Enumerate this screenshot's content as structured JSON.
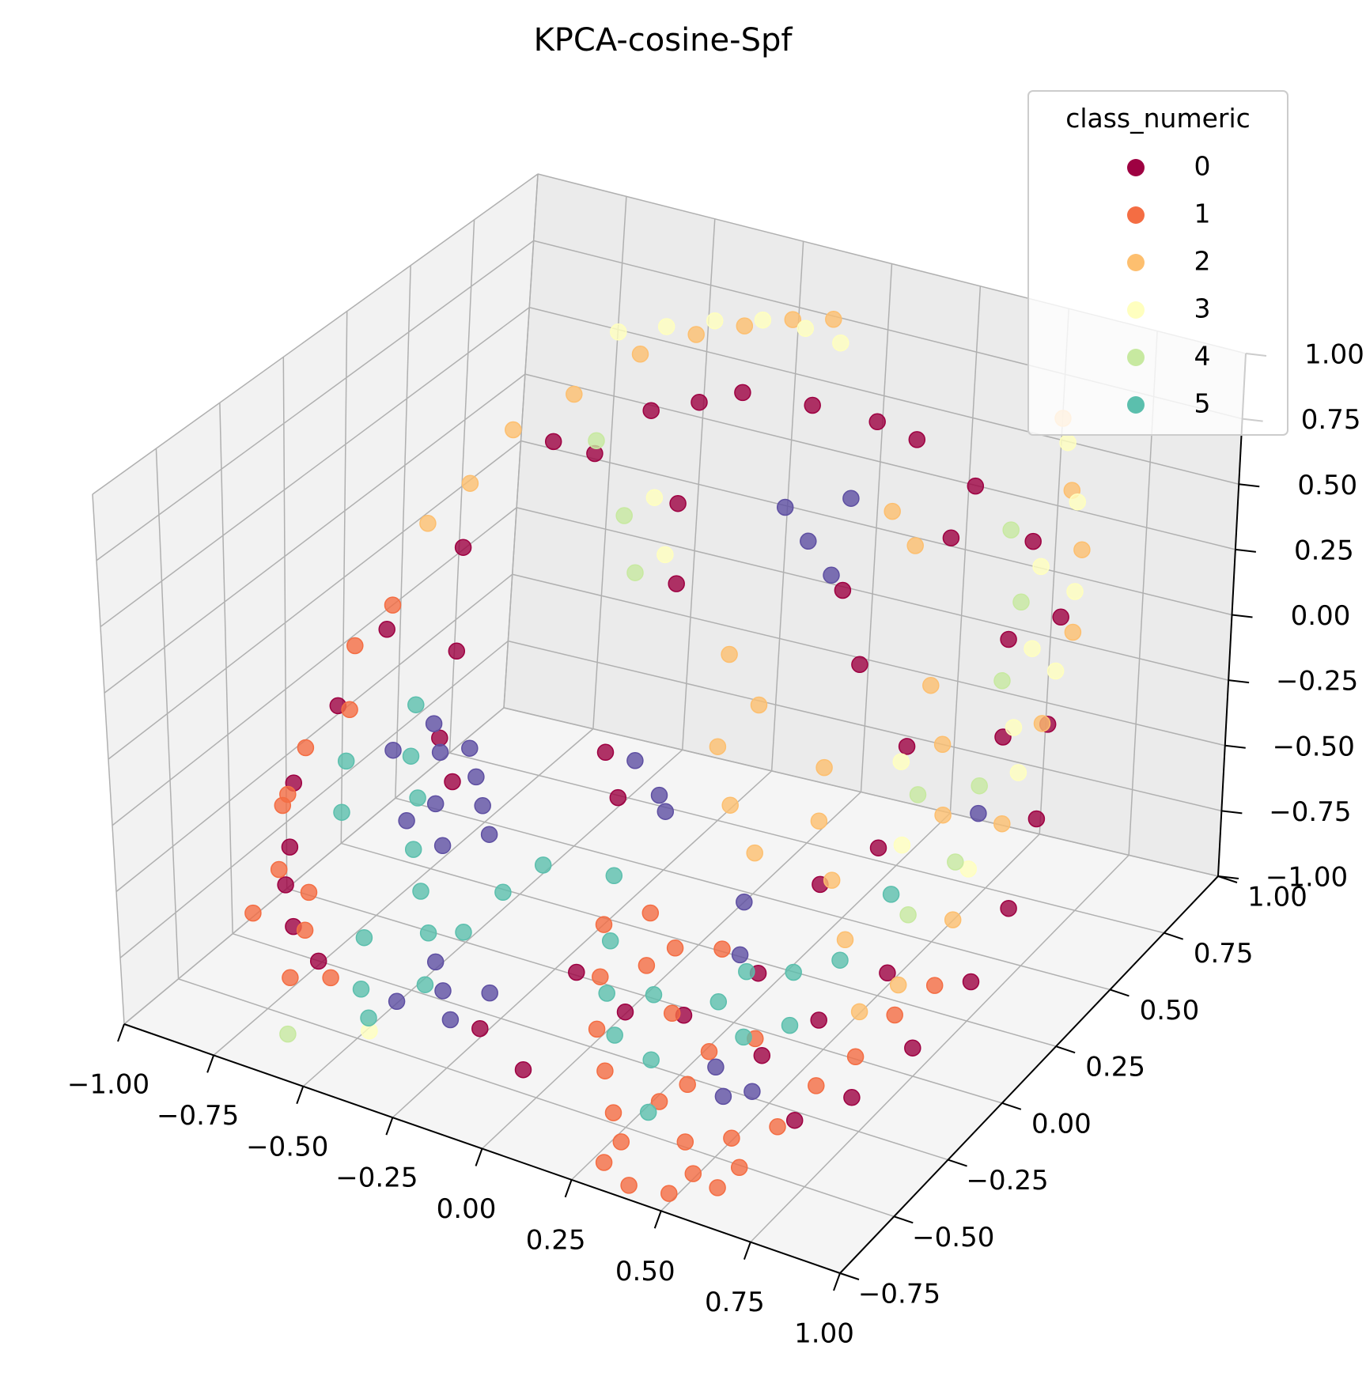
{
  "chart_data": {
    "type": "scatter",
    "projection": "3d",
    "title": "KPCA-cosine-Spf",
    "xlabel": "",
    "ylabel": "",
    "zlabel": "",
    "xlim": [
      -1.0,
      1.0
    ],
    "ylim": [
      -0.75,
      1.0
    ],
    "zlim": [
      -1.0,
      1.0
    ],
    "x_ticks": [
      "−1.00",
      "−0.75",
      "−0.50",
      "−0.25",
      "0.00",
      "0.25",
      "0.50",
      "0.75",
      "1.00"
    ],
    "x_tick_values": [
      -1.0,
      -0.75,
      -0.5,
      -0.25,
      0.0,
      0.25,
      0.5,
      0.75,
      1.0
    ],
    "y_ticks": [
      "−0.75",
      "−0.50",
      "−0.25",
      "0.00",
      "0.25",
      "0.50",
      "0.75",
      "1.00"
    ],
    "y_tick_values": [
      -0.75,
      -0.5,
      -0.25,
      0.0,
      0.25,
      0.5,
      0.75,
      1.0
    ],
    "z_ticks": [
      "−1.00",
      "−0.75",
      "−0.50",
      "−0.25",
      "0.00",
      "0.25",
      "0.50",
      "0.75",
      "1.00"
    ],
    "z_tick_values": [
      -1.0,
      -0.75,
      -0.5,
      -0.25,
      0.0,
      0.25,
      0.5,
      0.75,
      1.0
    ],
    "grid": true,
    "legend": {
      "title": "class_numeric",
      "placement": "top-right",
      "entries": [
        {
          "label": "0",
          "color": "#9e0142"
        },
        {
          "label": "1",
          "color": "#f46d43"
        },
        {
          "label": "2",
          "color": "#fdbf6f"
        },
        {
          "label": "3",
          "color": "#ffffbf"
        },
        {
          "label": "4",
          "color": "#c7e9a0"
        },
        {
          "label": "5",
          "color": "#5bbfad"
        }
      ]
    },
    "series": [
      {
        "name": "0",
        "color": "#9e0142",
        "points": [
          [
            -0.62,
            0.55,
            0.45
          ],
          [
            -0.55,
            0.62,
            0.38
          ],
          [
            -0.45,
            0.7,
            0.52
          ],
          [
            -0.35,
            0.75,
            0.55
          ],
          [
            -0.25,
            0.78,
            0.6
          ],
          [
            -0.7,
            0.3,
            0.2
          ],
          [
            -0.78,
            0.1,
            0.0
          ],
          [
            -0.82,
            -0.05,
            -0.2
          ],
          [
            -0.85,
            -0.2,
            -0.4
          ],
          [
            -0.8,
            -0.3,
            -0.55
          ],
          [
            -0.75,
            -0.4,
            -0.6
          ],
          [
            -0.7,
            -0.45,
            -0.7
          ],
          [
            -0.6,
            -0.5,
            -0.75
          ],
          [
            -0.1,
            0.85,
            0.55
          ],
          [
            0.05,
            0.9,
            0.5
          ],
          [
            0.15,
            0.92,
            0.45
          ],
          [
            0.3,
            0.95,
            0.3
          ],
          [
            0.5,
            0.9,
            0.2
          ],
          [
            0.65,
            0.8,
            0.05
          ],
          [
            0.75,
            0.6,
            -0.15
          ],
          [
            0.85,
            0.4,
            -0.3
          ],
          [
            0.9,
            0.2,
            -0.45
          ],
          [
            0.92,
            0.0,
            -0.55
          ],
          [
            0.88,
            -0.2,
            -0.65
          ],
          [
            0.8,
            -0.35,
            -0.75
          ],
          [
            0.7,
            -0.45,
            -0.8
          ],
          [
            0.3,
            -0.3,
            -0.7
          ],
          [
            0.2,
            -0.4,
            -0.65
          ],
          [
            0.1,
            -0.45,
            -0.5
          ],
          [
            0.0,
            -0.1,
            -0.15
          ],
          [
            -0.1,
            0.0,
            -0.1
          ],
          [
            0.45,
            -0.2,
            -0.55
          ],
          [
            -0.3,
            0.6,
            0.3
          ],
          [
            -0.2,
            0.45,
            0.15
          ],
          [
            0.2,
            0.55,
            0.2
          ],
          [
            0.35,
            0.4,
            0.1
          ],
          [
            0.55,
            0.3,
            -0.05
          ],
          [
            0.6,
            0.1,
            -0.25
          ],
          [
            0.5,
            0.0,
            -0.35
          ],
          [
            -0.65,
            0.2,
            -0.1
          ],
          [
            -0.6,
            0.05,
            -0.3
          ],
          [
            -0.5,
            -0.05,
            -0.35
          ],
          [
            0.75,
            -0.1,
            -0.5
          ],
          [
            0.65,
            -0.25,
            -0.6
          ],
          [
            0.55,
            -0.35,
            -0.7
          ],
          [
            -0.15,
            -0.5,
            -0.8
          ],
          [
            0.0,
            -0.55,
            -0.85
          ],
          [
            0.82,
            0.3,
            0.1
          ],
          [
            0.7,
            0.5,
            0.25
          ],
          [
            0.4,
            0.7,
            0.35
          ]
        ]
      },
      {
        "name": "1",
        "color": "#f46d43",
        "points": [
          [
            -0.88,
            -0.1,
            -0.35
          ],
          [
            -0.85,
            -0.25,
            -0.45
          ],
          [
            -0.8,
            -0.35,
            -0.6
          ],
          [
            -0.75,
            -0.3,
            -0.7
          ],
          [
            -0.7,
            -0.4,
            -0.75
          ],
          [
            -0.82,
            0.0,
            -0.25
          ],
          [
            -0.9,
            -0.15,
            -0.5
          ],
          [
            -0.78,
            -0.5,
            -0.65
          ],
          [
            -0.65,
            -0.55,
            -0.8
          ],
          [
            -0.6,
            -0.45,
            -0.85
          ],
          [
            -0.87,
            0.1,
            -0.1
          ],
          [
            -0.83,
            0.2,
            0.0
          ],
          [
            0.1,
            -0.35,
            -0.6
          ],
          [
            0.15,
            -0.45,
            -0.7
          ],
          [
            0.2,
            -0.5,
            -0.8
          ],
          [
            0.25,
            -0.55,
            -0.9
          ],
          [
            0.3,
            -0.6,
            -0.95
          ],
          [
            0.35,
            -0.5,
            -0.85
          ],
          [
            0.4,
            -0.45,
            -0.8
          ],
          [
            0.45,
            -0.55,
            -0.92
          ],
          [
            0.5,
            -0.6,
            -0.98
          ],
          [
            0.55,
            -0.5,
            -0.9
          ],
          [
            0.6,
            -0.55,
            -0.95
          ],
          [
            0.65,
            -0.45,
            -0.85
          ],
          [
            0.2,
            -0.3,
            -0.55
          ],
          [
            0.25,
            -0.25,
            -0.5
          ],
          [
            0.3,
            -0.35,
            -0.65
          ],
          [
            0.35,
            -0.2,
            -0.5
          ],
          [
            0.15,
            -0.2,
            -0.45
          ],
          [
            0.05,
            -0.25,
            -0.5
          ],
          [
            0.7,
            -0.35,
            -0.75
          ],
          [
            0.75,
            -0.25,
            -0.7
          ],
          [
            0.8,
            -0.15,
            -0.6
          ],
          [
            0.85,
            -0.05,
            -0.55
          ],
          [
            0.5,
            -0.3,
            -0.7
          ],
          [
            0.42,
            -0.38,
            -0.72
          ],
          [
            0.28,
            -0.65,
            -1.0
          ],
          [
            0.38,
            -0.7,
            -1.0
          ],
          [
            0.48,
            -0.68,
            -1.0
          ],
          [
            0.58,
            -0.62,
            -0.98
          ]
        ]
      },
      {
        "name": "2",
        "color": "#fdbf6f",
        "points": [
          [
            -0.7,
            0.5,
            0.5
          ],
          [
            -0.6,
            0.6,
            0.6
          ],
          [
            -0.5,
            0.72,
            0.7
          ],
          [
            -0.4,
            0.8,
            0.75
          ],
          [
            -0.3,
            0.85,
            0.78
          ],
          [
            -0.2,
            0.9,
            0.8
          ],
          [
            -0.1,
            0.92,
            0.82
          ],
          [
            0.6,
            0.85,
            0.75
          ],
          [
            0.7,
            0.75,
            0.6
          ],
          [
            0.8,
            0.65,
            0.5
          ],
          [
            0.88,
            0.5,
            0.35
          ],
          [
            0.93,
            0.3,
            0.2
          ],
          [
            0.95,
            0.1,
            0.0
          ],
          [
            0.94,
            -0.1,
            -0.2
          ],
          [
            0.88,
            -0.25,
            -0.35
          ],
          [
            0.8,
            -0.3,
            -0.45
          ],
          [
            0.7,
            -0.2,
            -0.3
          ],
          [
            0.6,
            -0.1,
            -0.2
          ],
          [
            0.5,
            0.0,
            -0.1
          ],
          [
            0.45,
            0.1,
            0.0
          ],
          [
            0.2,
            0.2,
            0.05
          ],
          [
            0.15,
            0.1,
            -0.05
          ],
          [
            0.25,
            0.0,
            -0.15
          ],
          [
            0.35,
            -0.05,
            -0.25
          ],
          [
            -0.75,
            0.4,
            0.35
          ],
          [
            -0.8,
            0.3,
            0.25
          ],
          [
            0.55,
            0.4,
            0.1
          ],
          [
            0.65,
            0.3,
            0.0
          ],
          [
            0.75,
            0.15,
            -0.1
          ],
          [
            0.4,
            0.55,
            0.45
          ],
          [
            0.3,
            0.6,
            0.5
          ],
          [
            0.05,
            0.3,
            0.1
          ]
        ]
      },
      {
        "name": "3",
        "color": "#ffffbf",
        "points": [
          [
            -0.55,
            0.7,
            0.78
          ],
          [
            -0.45,
            0.75,
            0.8
          ],
          [
            -0.35,
            0.8,
            0.82
          ],
          [
            -0.25,
            0.85,
            0.82
          ],
          [
            -0.15,
            0.88,
            0.8
          ],
          [
            -0.05,
            0.88,
            0.78
          ],
          [
            0.65,
            0.8,
            0.72
          ],
          [
            0.75,
            0.7,
            0.62
          ],
          [
            0.85,
            0.55,
            0.45
          ],
          [
            0.9,
            0.4,
            0.3
          ],
          [
            0.93,
            0.2,
            0.1
          ],
          [
            0.92,
            0.0,
            -0.1
          ],
          [
            0.85,
            0.3,
            0.15
          ],
          [
            0.8,
            0.45,
            0.3
          ],
          [
            0.72,
            0.6,
            0.45
          ],
          [
            -0.3,
            0.5,
            0.4
          ],
          [
            -0.2,
            0.4,
            0.3
          ],
          [
            -0.4,
            -0.6,
            -0.85
          ],
          [
            0.6,
            0.2,
            0.0
          ],
          [
            0.7,
            0.05,
            -0.15
          ]
        ]
      },
      {
        "name": "4",
        "color": "#c7e9a0",
        "points": [
          [
            -0.5,
            0.55,
            0.5
          ],
          [
            -0.35,
            0.45,
            0.35
          ],
          [
            -0.25,
            0.35,
            0.25
          ],
          [
            0.75,
            0.4,
            0.2
          ],
          [
            0.82,
            0.2,
            0.0
          ],
          [
            0.85,
            0.05,
            -0.15
          ],
          [
            0.7,
            0.55,
            0.35
          ],
          [
            0.6,
            0.65,
            0.5
          ],
          [
            -0.6,
            -0.65,
            -0.92
          ],
          [
            0.78,
            -0.05,
            -0.3
          ],
          [
            0.68,
            0.15,
            -0.05
          ]
        ]
      },
      {
        "name": "5",
        "color": "#5bbfad",
        "points": [
          [
            -0.6,
            -0.05,
            -0.1
          ],
          [
            -0.55,
            -0.15,
            -0.2
          ],
          [
            -0.5,
            -0.2,
            -0.3
          ],
          [
            -0.45,
            -0.3,
            -0.4
          ],
          [
            -0.4,
            -0.35,
            -0.5
          ],
          [
            -0.35,
            -0.4,
            -0.6
          ],
          [
            -0.5,
            -0.45,
            -0.65
          ],
          [
            -0.45,
            -0.55,
            -0.75
          ],
          [
            -0.4,
            -0.6,
            -0.8
          ],
          [
            -0.3,
            -0.5,
            -0.7
          ],
          [
            -0.25,
            -0.4,
            -0.55
          ],
          [
            -0.2,
            -0.3,
            -0.45
          ],
          [
            0.05,
            -0.2,
            -0.35
          ],
          [
            0.1,
            -0.3,
            -0.5
          ],
          [
            0.15,
            -0.4,
            -0.6
          ],
          [
            0.2,
            -0.45,
            -0.7
          ],
          [
            0.25,
            -0.35,
            -0.6
          ],
          [
            0.3,
            -0.45,
            -0.75
          ],
          [
            0.35,
            -0.55,
            -0.85
          ],
          [
            0.4,
            -0.3,
            -0.6
          ],
          [
            0.45,
            -0.25,
            -0.5
          ],
          [
            0.5,
            -0.35,
            -0.65
          ],
          [
            0.55,
            -0.2,
            -0.5
          ],
          [
            0.6,
            -0.3,
            -0.6
          ],
          [
            0.65,
            -0.15,
            -0.45
          ],
          [
            0.7,
            0.0,
            -0.3
          ],
          [
            -0.65,
            -0.3,
            -0.35
          ],
          [
            -0.7,
            -0.2,
            -0.25
          ],
          [
            -0.15,
            -0.2,
            -0.4
          ]
        ]
      },
      {
        "name": "",
        "color": "#5e4fa2",
        "points": [
          [
            -0.55,
            -0.05,
            -0.15
          ],
          [
            -0.5,
            -0.1,
            -0.2
          ],
          [
            -0.45,
            -0.05,
            -0.2
          ],
          [
            -0.4,
            -0.1,
            -0.25
          ],
          [
            -0.35,
            -0.15,
            -0.3
          ],
          [
            -0.3,
            -0.2,
            -0.35
          ],
          [
            -0.5,
            -0.25,
            -0.35
          ],
          [
            -0.45,
            -0.2,
            -0.3
          ],
          [
            -0.4,
            -0.25,
            -0.4
          ],
          [
            -0.3,
            -0.45,
            -0.65
          ],
          [
            -0.25,
            -0.5,
            -0.7
          ],
          [
            -0.2,
            -0.55,
            -0.75
          ],
          [
            -0.15,
            -0.45,
            -0.7
          ],
          [
            -0.35,
            -0.55,
            -0.75
          ],
          [
            0.0,
            0.6,
            0.4
          ],
          [
            0.1,
            0.55,
            0.35
          ],
          [
            0.2,
            0.5,
            0.3
          ],
          [
            0.15,
            0.65,
            0.45
          ],
          [
            -0.05,
            0.05,
            -0.15
          ],
          [
            0.05,
            0.0,
            -0.2
          ],
          [
            0.1,
            -0.05,
            -0.2
          ],
          [
            0.45,
            -0.4,
            -0.75
          ],
          [
            0.5,
            -0.45,
            -0.8
          ],
          [
            0.55,
            -0.4,
            -0.8
          ],
          [
            0.4,
            -0.2,
            -0.5
          ],
          [
            0.35,
            -0.1,
            -0.4
          ],
          [
            0.85,
            0.15,
            -0.05
          ],
          [
            -0.6,
            -0.15,
            -0.2
          ]
        ]
      }
    ]
  }
}
